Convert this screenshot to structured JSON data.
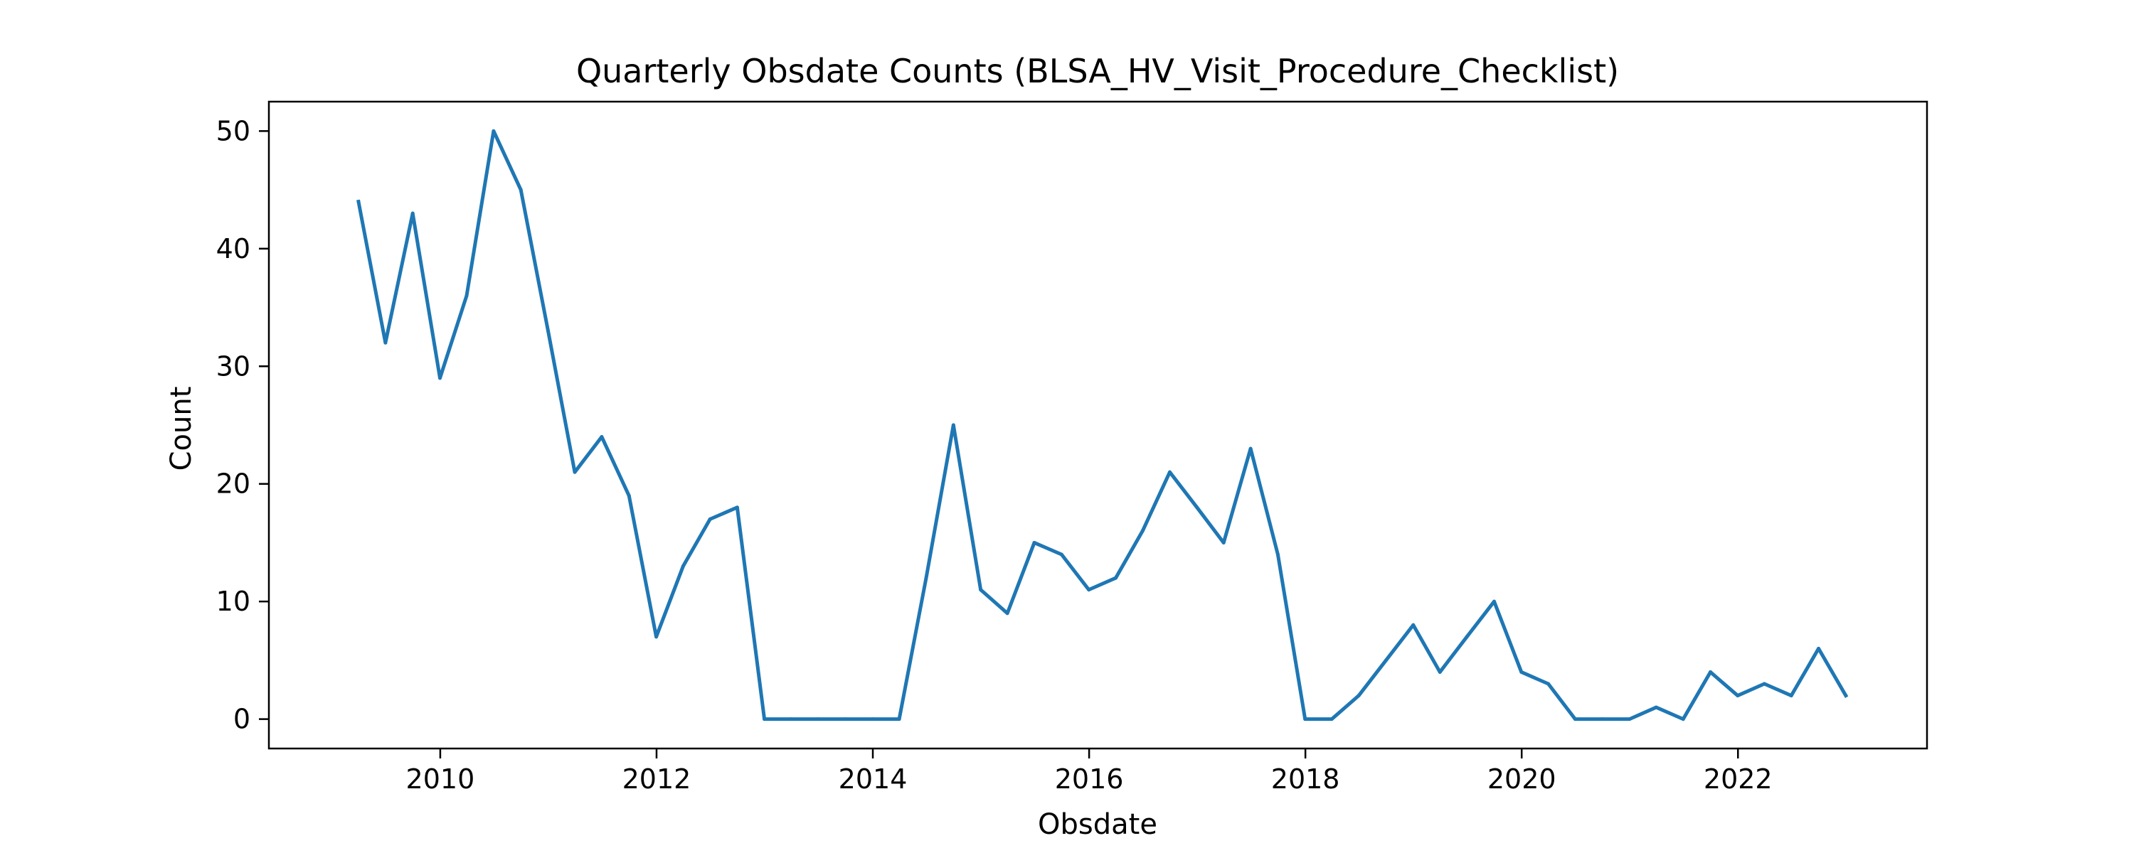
{
  "chart_data": {
    "type": "line",
    "title": "Quarterly Obsdate Counts (BLSA_HV_Visit_Procedure_Checklist)",
    "xlabel": "Obsdate",
    "ylabel": "Count",
    "x_ticks": [
      "2010",
      "2012",
      "2014",
      "2016",
      "2018",
      "2020",
      "2022"
    ],
    "y_ticks": [
      "0",
      "10",
      "20",
      "30",
      "40",
      "50"
    ],
    "xlim": [
      "2008-06-01",
      "2023-10-01"
    ],
    "ylim": [
      -2.5,
      52.5
    ],
    "grid": false,
    "legend": "none",
    "series": [
      {
        "color": "#1f77b4",
        "x": [
          "2009-03-31",
          "2009-06-30",
          "2009-09-30",
          "2009-12-31",
          "2010-03-31",
          "2010-06-30",
          "2010-09-30",
          "2010-12-31",
          "2011-03-31",
          "2011-06-30",
          "2011-09-30",
          "2011-12-31",
          "2012-03-31",
          "2012-06-30",
          "2012-09-30",
          "2012-12-31",
          "2013-03-31",
          "2013-06-30",
          "2013-09-30",
          "2013-12-31",
          "2014-03-31",
          "2014-06-30",
          "2014-09-30",
          "2014-12-31",
          "2015-03-31",
          "2015-06-30",
          "2015-09-30",
          "2015-12-31",
          "2016-03-31",
          "2016-06-30",
          "2016-09-30",
          "2016-12-31",
          "2017-03-31",
          "2017-06-30",
          "2017-09-30",
          "2017-12-31",
          "2018-03-31",
          "2018-06-30",
          "2018-09-30",
          "2018-12-31",
          "2019-03-31",
          "2019-06-30",
          "2019-09-30",
          "2019-12-31",
          "2020-03-31",
          "2020-06-30",
          "2020-09-30",
          "2020-12-31",
          "2021-03-31",
          "2021-06-30",
          "2021-09-30",
          "2021-12-31",
          "2022-03-31",
          "2022-06-30",
          "2022-09-30",
          "2022-12-31"
        ],
        "values": [
          44,
          32,
          43,
          29,
          36,
          50,
          45,
          33,
          21,
          24,
          19,
          7,
          13,
          17,
          18,
          0,
          0,
          0,
          0,
          0,
          0,
          12,
          25,
          11,
          9,
          15,
          14,
          11,
          12,
          16,
          21,
          18,
          15,
          23,
          14,
          0,
          0,
          2,
          5,
          8,
          4,
          7,
          10,
          4,
          3,
          0,
          0,
          0,
          1,
          0,
          4,
          2,
          3,
          2,
          6,
          2
        ]
      }
    ]
  }
}
